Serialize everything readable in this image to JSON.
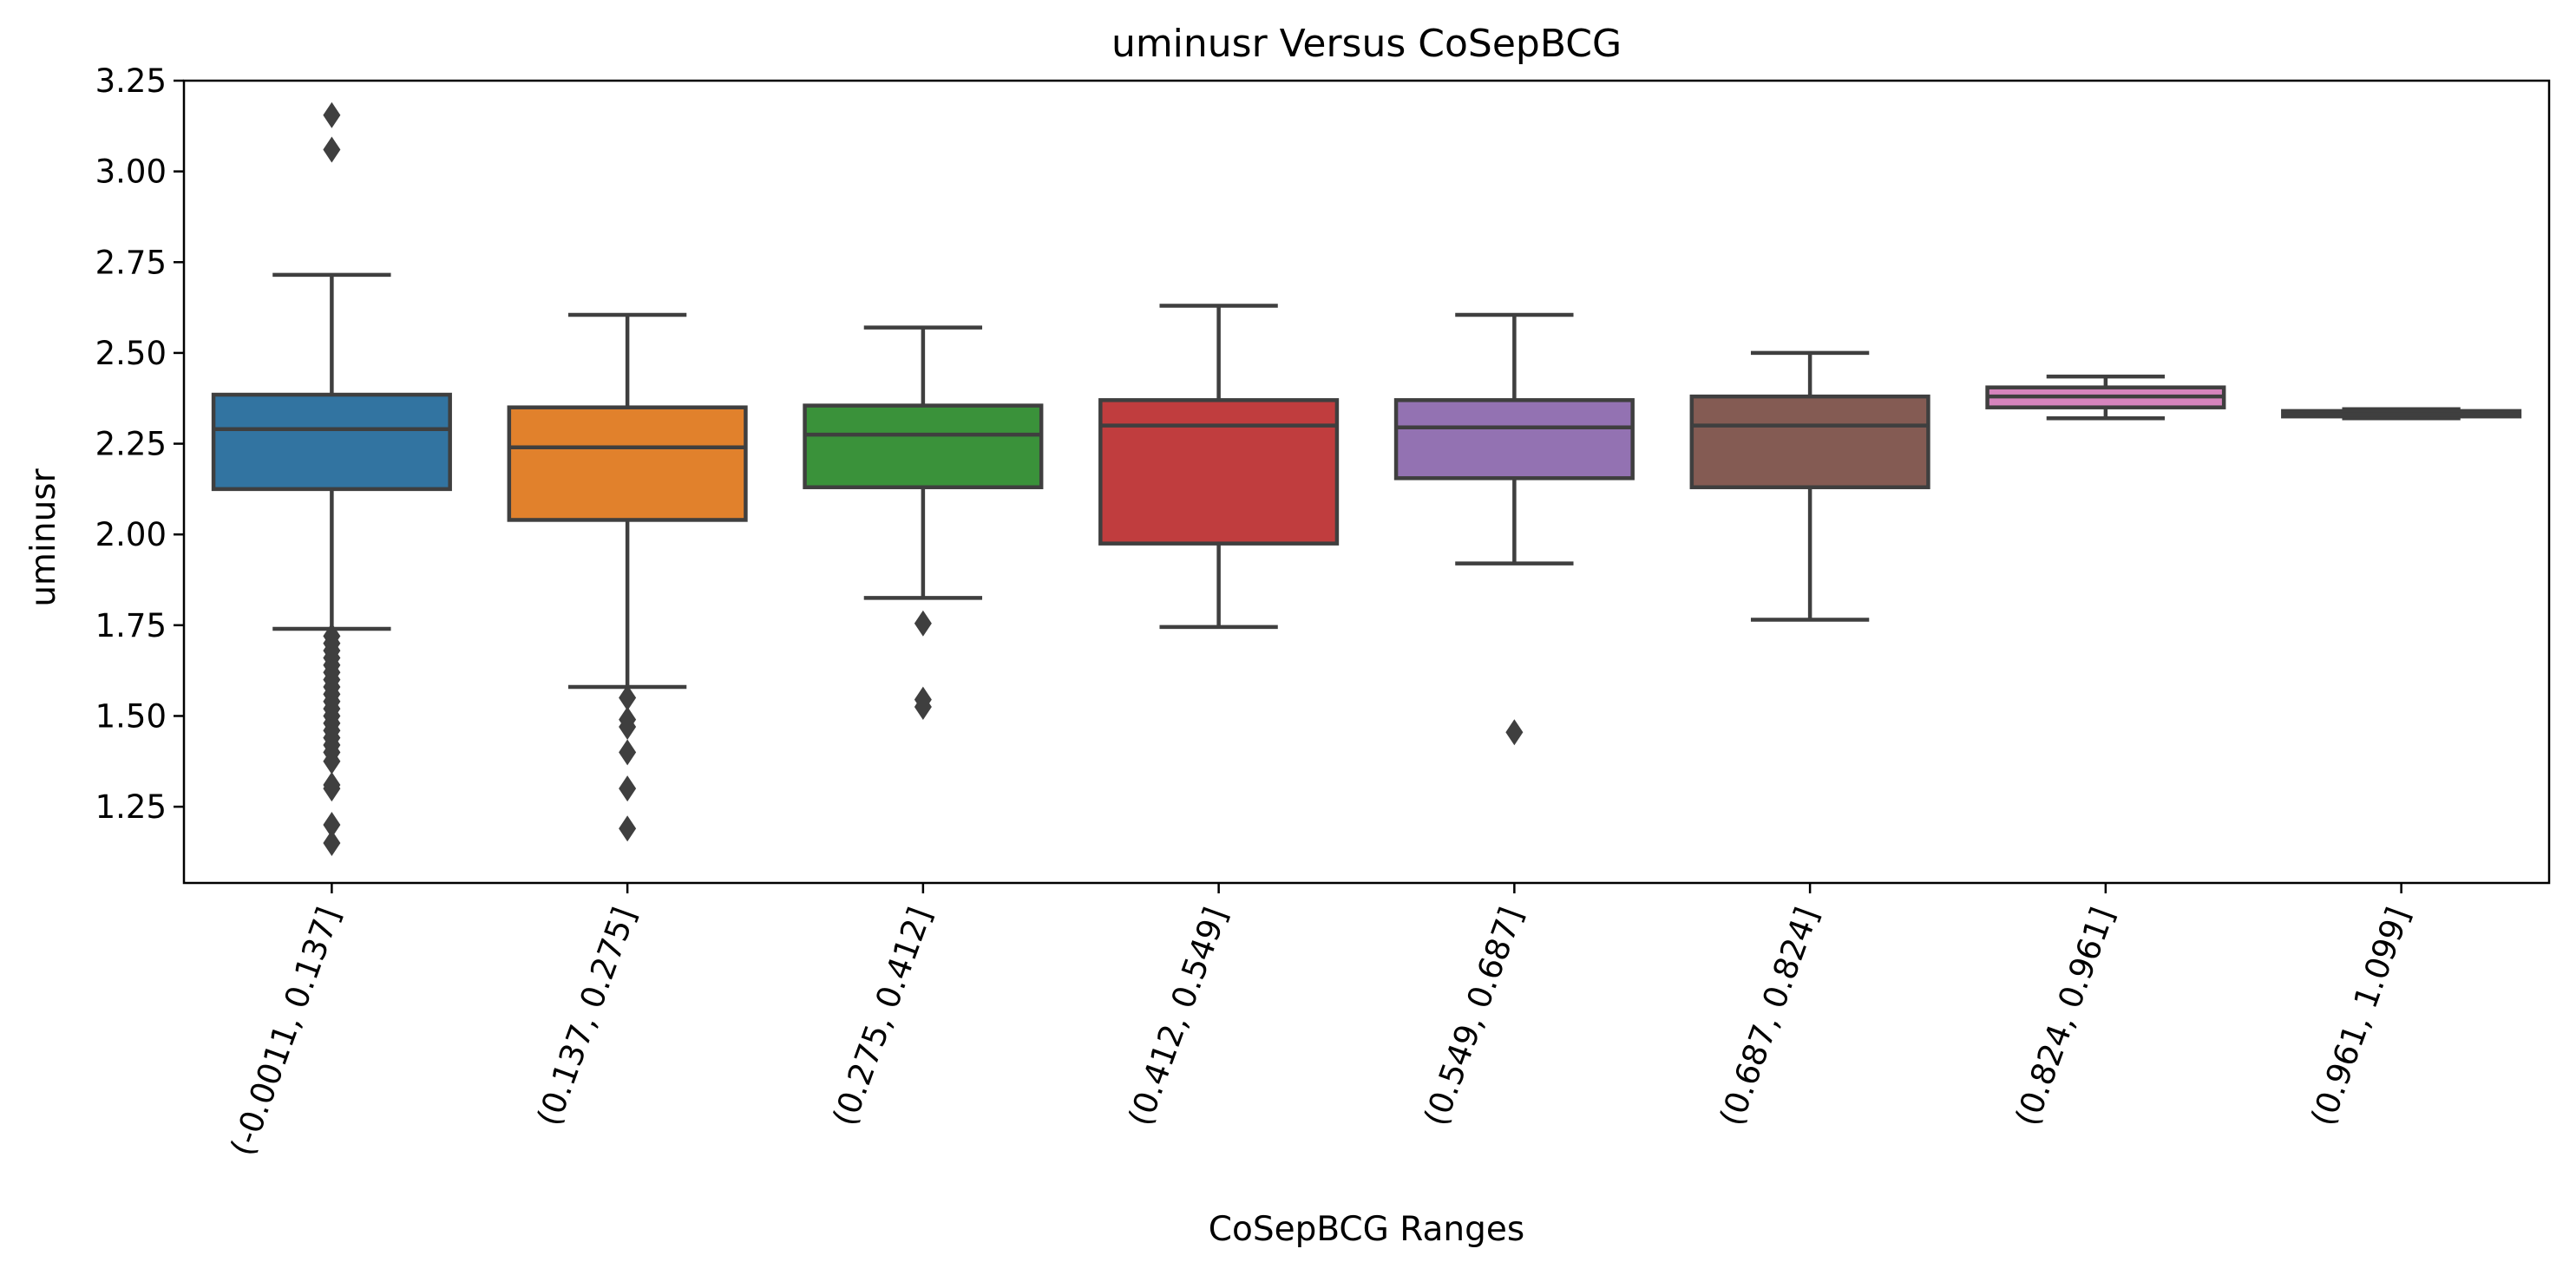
{
  "chart_data": {
    "type": "box",
    "title": "uminusr Versus CoSepBCG",
    "xlabel": "CoSepBCG Ranges",
    "ylabel": "uminusr",
    "ylim": [
      1.04,
      3.25
    ],
    "yticks": [
      "1.25",
      "1.50",
      "1.75",
      "2.00",
      "2.25",
      "2.50",
      "2.75",
      "3.00",
      "3.25"
    ],
    "grid": false,
    "categories": [
      "(-0.0011, 0.137]",
      "(0.137, 0.275]",
      "(0.275, 0.412]",
      "(0.412, 0.549]",
      "(0.549, 0.687]",
      "(0.687, 0.824]",
      "(0.824, 0.961]",
      "(0.961, 1.099]"
    ],
    "boxes": [
      {
        "whisker_low": 1.74,
        "q1": 2.125,
        "median": 2.29,
        "q3": 2.385,
        "whisker_high": 2.715,
        "color": "#3274a1",
        "outliers": [
          3.155,
          3.06,
          1.72,
          1.7,
          1.68,
          1.66,
          1.64,
          1.62,
          1.6,
          1.58,
          1.56,
          1.54,
          1.52,
          1.5,
          1.48,
          1.46,
          1.44,
          1.42,
          1.4,
          1.375,
          1.31,
          1.3,
          1.2,
          1.15
        ]
      },
      {
        "whisker_low": 1.58,
        "q1": 2.04,
        "median": 2.24,
        "q3": 2.35,
        "whisker_high": 2.605,
        "color": "#e1812c",
        "outliers": [
          1.55,
          1.49,
          1.47,
          1.4,
          1.3,
          1.19
        ]
      },
      {
        "whisker_low": 1.825,
        "q1": 2.13,
        "median": 2.275,
        "q3": 2.355,
        "whisker_high": 2.57,
        "color": "#3a923a",
        "outliers": [
          1.755,
          1.545,
          1.525
        ]
      },
      {
        "whisker_low": 1.745,
        "q1": 1.975,
        "median": 2.3,
        "q3": 2.37,
        "whisker_high": 2.63,
        "color": "#c03d3e",
        "outliers": []
      },
      {
        "whisker_low": 1.92,
        "q1": 2.155,
        "median": 2.295,
        "q3": 2.37,
        "whisker_high": 2.605,
        "color": "#9372b2",
        "outliers": [
          1.455
        ]
      },
      {
        "whisker_low": 1.765,
        "q1": 2.13,
        "median": 2.3,
        "q3": 2.38,
        "whisker_high": 2.5,
        "color": "#845b53",
        "outliers": []
      },
      {
        "whisker_low": 2.32,
        "q1": 2.35,
        "median": 2.38,
        "q3": 2.405,
        "whisker_high": 2.435,
        "color": "#d684bd",
        "outliers": []
      },
      {
        "whisker_low": 2.32,
        "q1": 2.325,
        "median": 2.33,
        "q3": 2.34,
        "whisker_high": 2.345,
        "color": "#7f7f7f",
        "outliers": []
      }
    ]
  }
}
